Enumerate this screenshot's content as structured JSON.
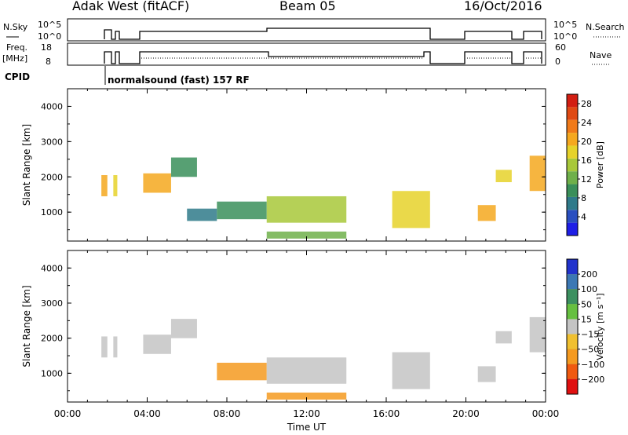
{
  "header": {
    "station": "Adak West (fitACF)",
    "beam": "Beam 05",
    "date": "16/Oct/2016"
  },
  "panels": {
    "nsky_label": "N.Sky",
    "nsky_ticks": [
      "10^5",
      "10^0"
    ],
    "nsearch_label": "N.Search",
    "nsearch_ticks": [
      "10^5",
      "10^0"
    ],
    "freq_label_line1": "Freq.",
    "freq_label_line2": "[MHz]",
    "freq_ticks": [
      "18",
      "8"
    ],
    "nave_label": "Nave",
    "nave_ticks": [
      "60",
      "0"
    ],
    "cpid_label": "CPID",
    "cpid_text": "normalsound (fast) 157 RF"
  },
  "chart_data": [
    {
      "type": "heatmap",
      "name": "power",
      "ylabel": "Slant Range [km]",
      "xlabel": "Time UT",
      "ylim": [
        180,
        4500
      ],
      "xlim": [
        0,
        24
      ],
      "yticks": [
        "1000",
        "2000",
        "3000",
        "4000"
      ],
      "xticks": [
        "00:00",
        "04:00",
        "08:00",
        "12:00",
        "16:00",
        "20:00",
        "00:00"
      ],
      "colorbar": {
        "label": "Power [dB]",
        "ticks": [
          "4",
          "8",
          "12",
          "16",
          "20",
          "24",
          "28"
        ],
        "range": [
          0,
          30
        ],
        "colors": [
          "#1e1ee6",
          "#2a4fc0",
          "#2f7a8a",
          "#3a8f5a",
          "#6fb04a",
          "#a8c83a",
          "#e6d22a",
          "#f5a81f",
          "#f07a1a",
          "#e04a14",
          "#d21e12"
        ]
      },
      "regions": [
        {
          "t0": 1.7,
          "t1": 2.0,
          "r0": 1450,
          "r1": 2050,
          "power": 20
        },
        {
          "t0": 2.3,
          "t1": 2.5,
          "r0": 1450,
          "r1": 2050,
          "power": 18
        },
        {
          "t0": 3.8,
          "t1": 5.2,
          "r0": 1550,
          "r1": 2100,
          "power": 20
        },
        {
          "t0": 5.2,
          "t1": 6.5,
          "r0": 2000,
          "r1": 2550,
          "power": 8
        },
        {
          "t0": 6.0,
          "t1": 7.5,
          "r0": 750,
          "r1": 1100,
          "power": 6
        },
        {
          "t0": 7.5,
          "t1": 10.0,
          "r0": 800,
          "r1": 1300,
          "power": 10
        },
        {
          "t0": 10.0,
          "t1": 14.0,
          "r0": 700,
          "r1": 1450,
          "power": 14
        },
        {
          "t0": 10.0,
          "t1": 14.0,
          "r0": 250,
          "r1": 450,
          "power": 12
        },
        {
          "t0": 16.3,
          "t1": 18.2,
          "r0": 550,
          "r1": 1600,
          "power": 18
        },
        {
          "t0": 20.6,
          "t1": 21.5,
          "r0": 750,
          "r1": 1200,
          "power": 20
        },
        {
          "t0": 21.5,
          "t1": 22.3,
          "r0": 1850,
          "r1": 2200,
          "power": 18
        },
        {
          "t0": 23.2,
          "t1": 24.0,
          "r0": 1600,
          "r1": 2600,
          "power": 20
        }
      ]
    },
    {
      "type": "heatmap",
      "name": "velocity",
      "ylabel": "Slant Range [km]",
      "xlabel": "Time UT",
      "ylim": [
        180,
        4500
      ],
      "xlim": [
        0,
        24
      ],
      "yticks": [
        "1000",
        "2000",
        "3000",
        "4000"
      ],
      "xticks": [
        "00:00",
        "04:00",
        "08:00",
        "12:00",
        "16:00",
        "20:00",
        "00:00"
      ],
      "colorbar": {
        "label": "Velocity [m s⁻¹]",
        "ticks": [
          "200",
          "100",
          "50",
          "15",
          "−15",
          "−50",
          "−100",
          "−200"
        ],
        "colors": [
          "#2233cc",
          "#3c78b4",
          "#3c9060",
          "#66c040",
          "#c4c4c4",
          "#f0c030",
          "#f59a20",
          "#f05a10",
          "#e01010"
        ]
      },
      "regions": [
        {
          "t0": 1.7,
          "t1": 2.0,
          "r0": 1450,
          "r1": 2050,
          "velocity": 0
        },
        {
          "t0": 2.3,
          "t1": 2.5,
          "r0": 1450,
          "r1": 2050,
          "velocity": 0
        },
        {
          "t0": 3.8,
          "t1": 5.2,
          "r0": 1550,
          "r1": 2100,
          "velocity": 0
        },
        {
          "t0": 5.2,
          "t1": 6.5,
          "r0": 2000,
          "r1": 2550,
          "velocity": 0
        },
        {
          "t0": 7.5,
          "t1": 10.0,
          "r0": 800,
          "r1": 1300,
          "velocity": -40
        },
        {
          "t0": 10.0,
          "t1": 14.0,
          "r0": 700,
          "r1": 1450,
          "velocity": 0
        },
        {
          "t0": 10.0,
          "t1": 14.0,
          "r0": 250,
          "r1": 450,
          "velocity": -40
        },
        {
          "t0": 16.3,
          "t1": 18.2,
          "r0": 550,
          "r1": 1600,
          "velocity": 0
        },
        {
          "t0": 20.6,
          "t1": 21.5,
          "r0": 750,
          "r1": 1200,
          "velocity": 0
        },
        {
          "t0": 21.5,
          "t1": 22.3,
          "r0": 1850,
          "r1": 2200,
          "velocity": 0
        },
        {
          "t0": 23.2,
          "t1": 24.0,
          "r0": 1600,
          "r1": 2600,
          "velocity": 0
        }
      ]
    }
  ]
}
